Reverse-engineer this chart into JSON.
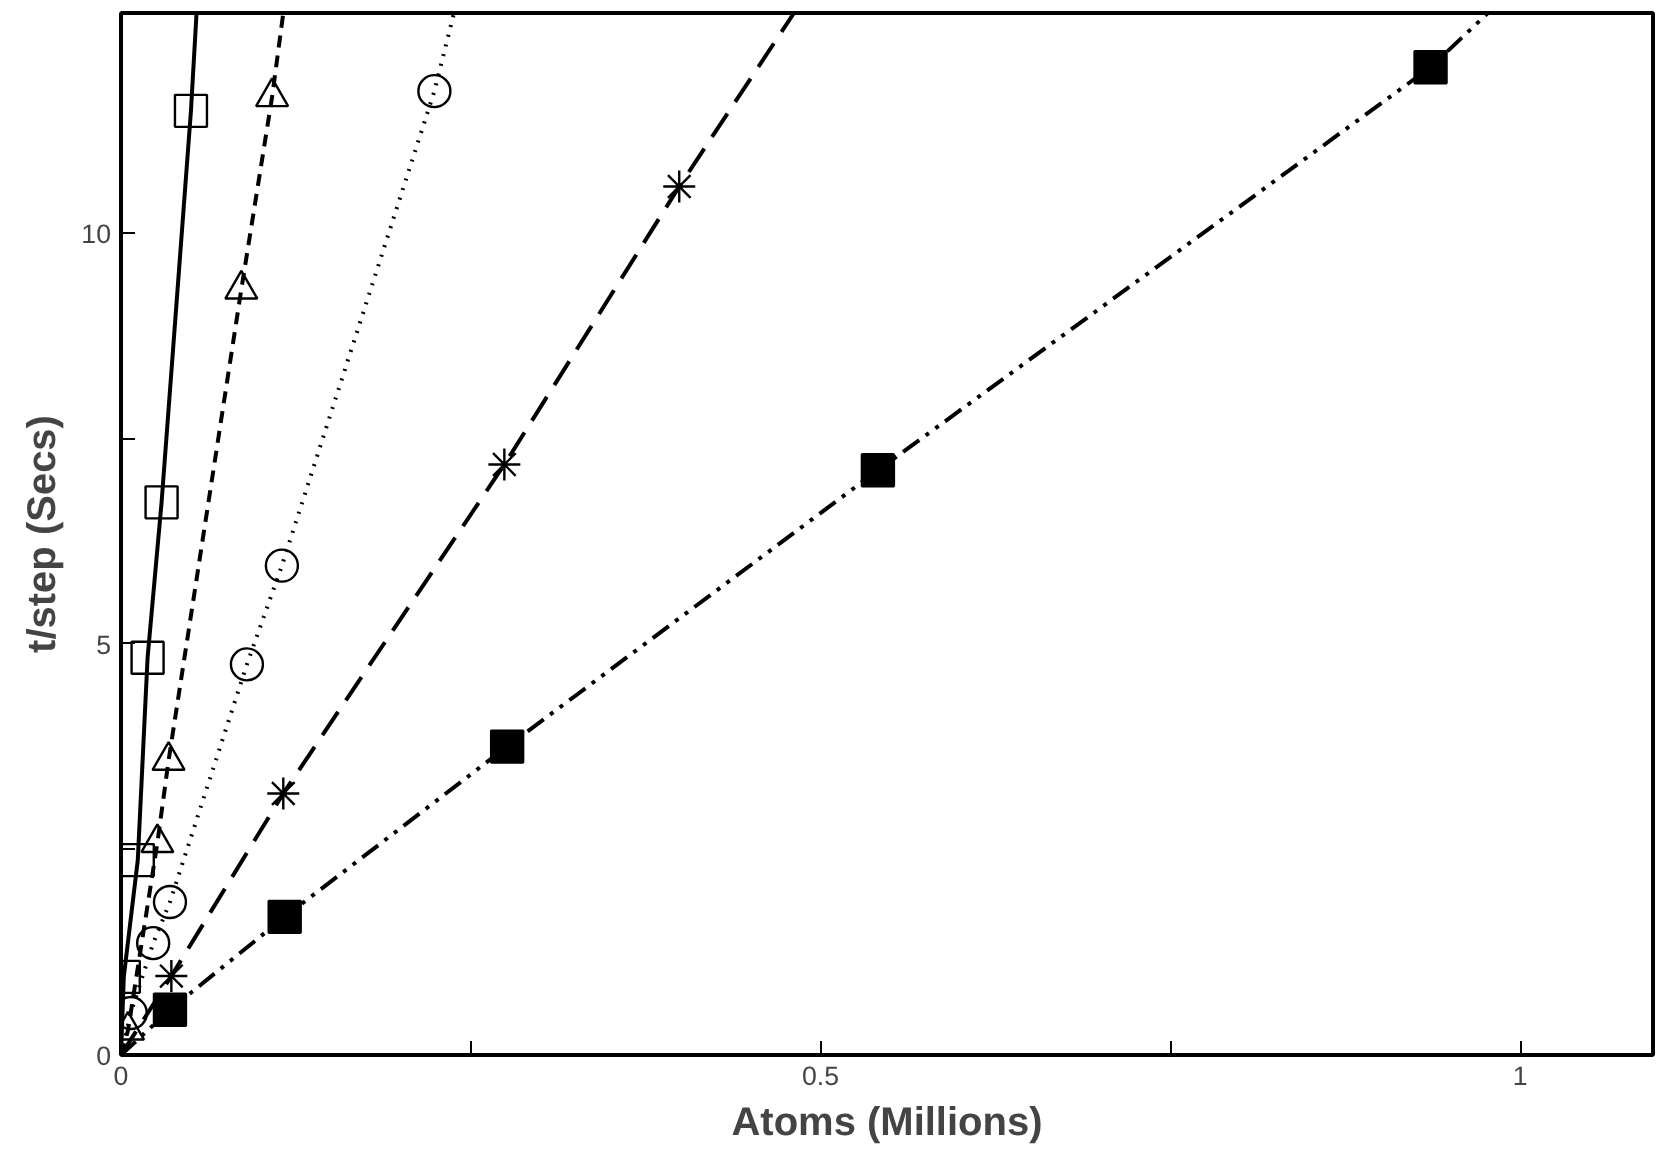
{
  "chart_data": {
    "type": "scatter",
    "xlabel": "Atoms (Millions)",
    "ylabel": "t/step (Secs)",
    "xlim": [
      0,
      1.095
    ],
    "ylim": [
      0,
      12.67
    ],
    "xticks": [
      0,
      {
        "value": 0.25,
        "label": null
      },
      0.5,
      {
        "value": 0.75,
        "label": null
      },
      1
    ],
    "yticks": [
      0,
      {
        "value": 2.5,
        "label": null
      },
      5,
      {
        "value": 7.5,
        "label": null
      },
      10
    ],
    "grid": false,
    "series": [
      {
        "type": "line",
        "line_style": "solid",
        "color": "#000000",
        "x": [
          0,
          0.002,
          0.012,
          0.019,
          0.029,
          0.05,
          0.054
        ],
        "values": [
          0,
          0.95,
          2.37,
          4.83,
          6.72,
          11.48,
          12.67
        ]
      },
      {
        "marker": "square",
        "color": "#000000",
        "x": [
          0.002,
          0.012,
          0.019,
          0.029,
          0.05
        ],
        "values": [
          0.95,
          2.37,
          4.83,
          6.72,
          11.48
        ]
      },
      {
        "type": "line",
        "line_style": "dashed",
        "color": "#000000",
        "x": [
          0,
          0.005,
          0.026,
          0.034,
          0.086,
          0.108,
          0.116
        ],
        "values": [
          0,
          0.3,
          2.58,
          3.58,
          9.31,
          11.65,
          12.67
        ]
      },
      {
        "marker": "triangle",
        "color": "#000000",
        "x": [
          0.005,
          0.026,
          0.034,
          0.086,
          0.108
        ],
        "values": [
          0.3,
          2.58,
          3.58,
          9.31,
          11.65
        ]
      },
      {
        "type": "line",
        "line_style": "dotted",
        "color": "#000000",
        "x": [
          0,
          0.007,
          0.023,
          0.035,
          0.09,
          0.115,
          0.224,
          0.238
        ],
        "values": [
          0,
          0.51,
          1.36,
          1.86,
          4.75,
          5.95,
          11.72,
          12.67
        ]
      },
      {
        "marker": "circle",
        "color": "#000000",
        "x": [
          0.007,
          0.023,
          0.035,
          0.09,
          0.115,
          0.224
        ],
        "values": [
          0.51,
          1.36,
          1.86,
          4.75,
          5.95,
          11.72
        ]
      },
      {
        "type": "line",
        "line_style": "longdashed",
        "color": "#000000",
        "x": [
          0,
          0.036,
          0.116,
          0.274,
          0.399,
          0.481
        ],
        "values": [
          0,
          0.96,
          3.18,
          7.18,
          10.56,
          12.67
        ]
      },
      {
        "marker": "cross",
        "color": "#000000",
        "x": [
          0.036,
          0.116,
          0.274,
          0.399
        ],
        "values": [
          0.96,
          3.18,
          7.18,
          10.56
        ]
      },
      {
        "type": "line",
        "line_style": "dashdotdot",
        "color": "#000000",
        "x": [
          0,
          0.035,
          0.117,
          0.276,
          0.541,
          0.936,
          0.977
        ],
        "values": [
          0,
          0.55,
          1.68,
          3.75,
          7.11,
          12.01,
          12.67
        ]
      },
      {
        "marker": "square",
        "color": "#000000",
        "colors": [
          "#000000",
          "#000000",
          "#000000",
          "#000000",
          "#000000"
        ],
        "x": [
          0.035,
          0.117,
          0.276,
          0.541,
          0.936
        ],
        "values": [
          0.55,
          1.68,
          3.75,
          7.11,
          12.01
        ]
      }
    ]
  }
}
